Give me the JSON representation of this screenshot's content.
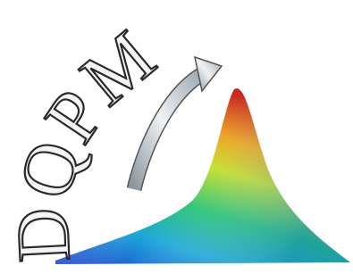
{
  "logo": {
    "text": "DQPM"
  }
}
